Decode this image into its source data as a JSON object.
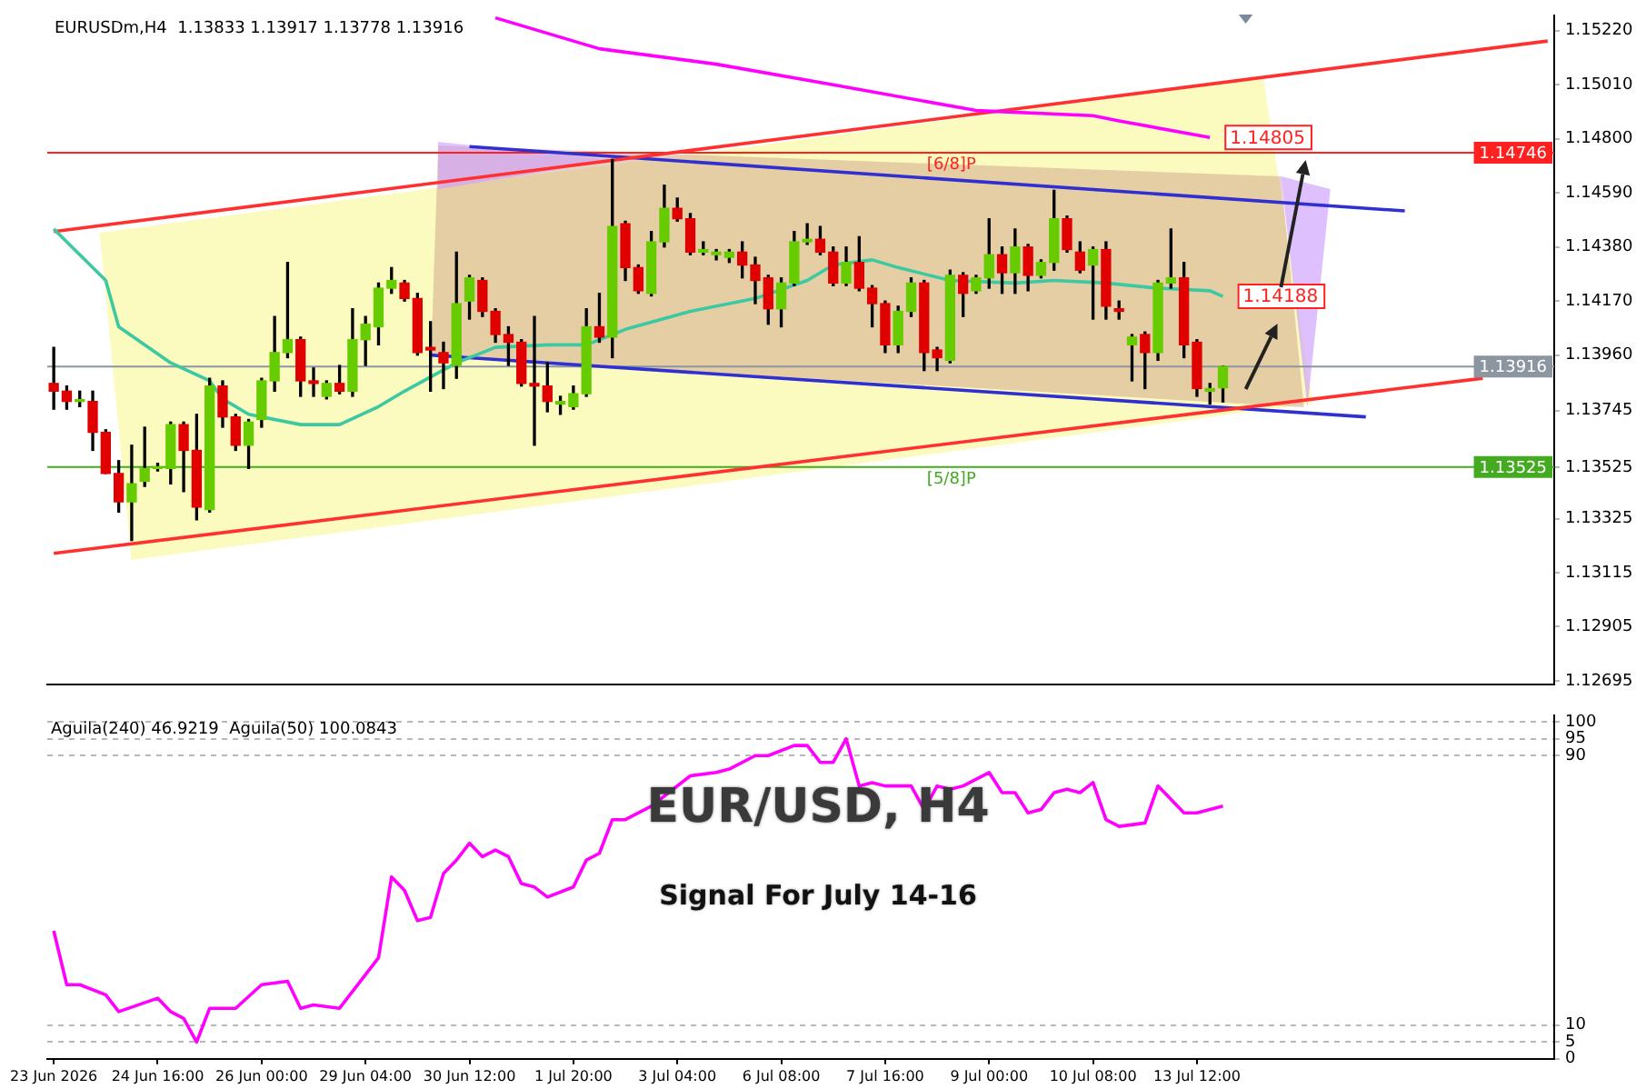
{
  "chart_data": [
    {
      "type": "candlestick",
      "title": "EURUSDm,H4  1.13833 1.13917 1.13778 1.13916",
      "categories": [
        null,
        null,
        null,
        null,
        null,
        null,
        null,
        null,
        null,
        null,
        null,
        null,
        null,
        null,
        null,
        null,
        null,
        null,
        null,
        null,
        null,
        null,
        null,
        null,
        null,
        null,
        null,
        null,
        null,
        null,
        null,
        null,
        null,
        null,
        null,
        null,
        null,
        null,
        null,
        null,
        null,
        null,
        null,
        null,
        null,
        null,
        null,
        null,
        null,
        null,
        null,
        null,
        null,
        null,
        null,
        null,
        null,
        null,
        null,
        null,
        null,
        null,
        null,
        null,
        null,
        null,
        null,
        null,
        null,
        null,
        null,
        null,
        null,
        null,
        null,
        null,
        null,
        null,
        null,
        null,
        null,
        null,
        null,
        null,
        null,
        null,
        null,
        null,
        null,
        null,
        null,
        null,
        null,
        null,
        null,
        null,
        null,
        null,
        null,
        null,
        null,
        null,
        null,
        null,
        null,
        null,
        null,
        null,
        null,
        null,
        null,
        null,
        null,
        null,
        null,
        null
      ],
      "ohlc": [
        [
          1.1385,
          1.1399,
          1.1375,
          1.1382
        ],
        [
          1.1382,
          1.1384,
          1.1375,
          1.1378
        ],
        [
          1.1378,
          1.1382,
          1.1376,
          1.1378
        ],
        [
          1.1378,
          1.1382,
          1.1359,
          1.1366
        ],
        [
          1.1366,
          1.1367,
          1.135,
          1.135
        ],
        [
          1.135,
          1.1355,
          1.1335,
          1.1339
        ],
        [
          1.1339,
          1.1361,
          1.1324,
          1.1346
        ],
        [
          1.1347,
          1.1368,
          1.1345,
          1.1352
        ],
        [
          1.1352,
          1.1354,
          1.1351,
          1.1352
        ],
        [
          1.1352,
          1.137,
          1.1346,
          1.1369
        ],
        [
          1.1369,
          1.137,
          1.1343,
          1.1359
        ],
        [
          1.1359,
          1.1373,
          1.1332,
          1.1337
        ],
        [
          1.1336,
          1.1387,
          1.1335,
          1.1384
        ],
        [
          1.1384,
          1.1386,
          1.1368,
          1.1372
        ],
        [
          1.1372,
          1.1373,
          1.1359,
          1.1361
        ],
        [
          1.1361,
          1.1371,
          1.1352,
          1.137
        ],
        [
          1.1371,
          1.1387,
          1.1368,
          1.1386
        ],
        [
          1.1386,
          1.1411,
          1.1382,
          1.1397
        ],
        [
          1.1397,
          1.1432,
          1.1395,
          1.1402
        ],
        [
          1.1402,
          1.1403,
          1.138,
          1.1386
        ],
        [
          1.1386,
          1.1391,
          1.138,
          1.1385
        ],
        [
          1.138,
          1.1386,
          1.1379,
          1.1385
        ],
        [
          1.1385,
          1.1392,
          1.1381,
          1.1382
        ],
        [
          1.1382,
          1.1414,
          1.138,
          1.1402
        ],
        [
          1.1402,
          1.1411,
          1.1392,
          1.1408
        ],
        [
          1.1407,
          1.1424,
          1.14,
          1.1422
        ],
        [
          1.1422,
          1.143,
          1.142,
          1.1425
        ],
        [
          1.1424,
          1.1425,
          1.1417,
          1.1418
        ],
        [
          1.1418,
          1.142,
          1.1396,
          1.1397
        ],
        [
          1.1399,
          1.1409,
          1.1382,
          1.1398
        ],
        [
          1.1397,
          1.1401,
          1.1383,
          1.1393
        ],
        [
          1.1392,
          1.1436,
          1.1387,
          1.1416
        ],
        [
          1.1417,
          1.1427,
          1.141,
          1.1426
        ],
        [
          1.1425,
          1.1426,
          1.1411,
          1.1413
        ],
        [
          1.1413,
          1.1414,
          1.1401,
          1.1404
        ],
        [
          1.1404,
          1.1407,
          1.1392,
          1.1401
        ],
        [
          1.1401,
          1.1402,
          1.1384,
          1.1385
        ],
        [
          1.1385,
          1.1411,
          1.1361,
          1.1384
        ],
        [
          1.1384,
          1.1393,
          1.1374,
          1.1378
        ],
        [
          1.1377,
          1.138,
          1.1373,
          1.1378
        ],
        [
          1.1376,
          1.1384,
          1.1375,
          1.1381
        ],
        [
          1.1381,
          1.1414,
          1.138,
          1.1407
        ],
        [
          1.1407,
          1.142,
          1.1401,
          1.1403
        ],
        [
          1.1403,
          1.1472,
          1.1395,
          1.1446
        ],
        [
          1.1447,
          1.1448,
          1.1425,
          1.143
        ],
        [
          1.143,
          1.1431,
          1.142,
          1.1421
        ],
        [
          1.142,
          1.1444,
          1.1419,
          1.144
        ],
        [
          1.144,
          1.1462,
          1.1438,
          1.1453
        ],
        [
          1.1453,
          1.1457,
          1.1448,
          1.1449
        ],
        [
          1.1449,
          1.1451,
          1.1435,
          1.1436
        ],
        [
          1.1436,
          1.144,
          1.1435,
          1.1437
        ],
        [
          1.1435,
          1.1437,
          1.1433,
          1.1436
        ],
        [
          1.1434,
          1.1437,
          1.1432,
          1.1436
        ],
        [
          1.1436,
          1.144,
          1.1426,
          1.1431
        ],
        [
          1.1431,
          1.1434,
          1.1416,
          1.1425
        ],
        [
          1.1426,
          1.1427,
          1.1408,
          1.1414
        ],
        [
          1.1414,
          1.1426,
          1.1407,
          1.1424
        ],
        [
          1.1424,
          1.1444,
          1.1423,
          1.144
        ],
        [
          1.144,
          1.1447,
          1.1439,
          1.1441
        ],
        [
          1.1441,
          1.1446,
          1.1435,
          1.1436
        ],
        [
          1.1436,
          1.1438,
          1.1423,
          1.1424
        ],
        [
          1.1424,
          1.1438,
          1.1423,
          1.1432
        ],
        [
          1.1432,
          1.1442,
          1.1421,
          1.1422
        ],
        [
          1.1422,
          1.1423,
          1.1407,
          1.1416
        ],
        [
          1.1416,
          1.1417,
          1.1397,
          1.14
        ],
        [
          1.14,
          1.1415,
          1.1397,
          1.1413
        ],
        [
          1.1413,
          1.1426,
          1.1411,
          1.1424
        ],
        [
          1.1424,
          1.1425,
          1.139,
          1.1397
        ],
        [
          1.1398,
          1.1399,
          1.139,
          1.1395
        ],
        [
          1.1394,
          1.1429,
          1.1393,
          1.1427
        ],
        [
          1.1427,
          1.1428,
          1.1411,
          1.142
        ],
        [
          1.1421,
          1.1427,
          1.142,
          1.1426
        ],
        [
          1.1426,
          1.1449,
          1.1422,
          1.1435
        ],
        [
          1.1435,
          1.1438,
          1.142,
          1.1428
        ],
        [
          1.1428,
          1.1445,
          1.142,
          1.1438
        ],
        [
          1.1438,
          1.1439,
          1.1421,
          1.1427
        ],
        [
          1.1427,
          1.1433,
          1.1426,
          1.1432
        ],
        [
          1.1432,
          1.146,
          1.1429,
          1.1449
        ],
        [
          1.1449,
          1.145,
          1.1436,
          1.1437
        ],
        [
          1.1436,
          1.144,
          1.1428,
          1.1429
        ],
        [
          1.1431,
          1.1438,
          1.141,
          1.1437
        ],
        [
          1.1437,
          1.144,
          1.141,
          1.1415
        ],
        [
          1.1414,
          1.1417,
          1.141,
          1.1413
        ],
        [
          1.14,
          1.1404,
          1.1386,
          1.1403
        ],
        [
          1.1404,
          1.1405,
          1.1383,
          1.1397
        ],
        [
          1.1397,
          1.1425,
          1.1394,
          1.1424
        ],
        [
          1.1424,
          1.1445,
          1.1422,
          1.1426
        ],
        [
          1.1426,
          1.1432,
          1.1395,
          1.14
        ],
        [
          1.1401,
          1.1402,
          1.138,
          1.1383
        ],
        [
          1.1382,
          1.1385,
          1.1377,
          1.1383
        ],
        [
          1.13833,
          1.13917,
          1.13778,
          1.13916
        ],
        null,
        null,
        null,
        null,
        null,
        null,
        null,
        null,
        null,
        null,
        null,
        null,
        null,
        null,
        null,
        null,
        null,
        null,
        null,
        null,
        null,
        null,
        null,
        null,
        null
      ],
      "series": [
        {
          "type": "line",
          "color": "#3cc8a0",
          "values": [
            1.1445,
            null,
            null,
            null,
            1.1425,
            1.1407,
            null,
            null,
            null,
            1.1393,
            null,
            null,
            1.1386,
            1.1379,
            null,
            1.1373,
            null,
            null,
            null,
            1.1369,
            null,
            null,
            1.1369,
            null,
            null,
            1.1376,
            null,
            1.1382,
            null,
            null,
            null,
            1.1393,
            null,
            null,
            1.1399,
            null,
            null,
            null,
            1.14,
            null,
            null,
            1.14,
            null,
            null,
            1.1406,
            null,
            null,
            null,
            null,
            1.1413,
            null,
            null,
            null,
            null,
            1.1418,
            null,
            null,
            null,
            1.1425,
            null,
            1.1431,
            null,
            null,
            1.1433,
            null,
            1.143,
            null,
            null,
            null,
            1.1425,
            null,
            null,
            null,
            null,
            1.1424,
            null,
            null,
            1.1425,
            null,
            null,
            null,
            1.1424,
            null,
            null,
            null,
            1.1422,
            null,
            null,
            null,
            1.1421,
            1.14188,
            null,
            null,
            null,
            null,
            null,
            null,
            null,
            null,
            null,
            null,
            null,
            null,
            null,
            null,
            null,
            null,
            null,
            null,
            null,
            null,
            null,
            null,
            null,
            null,
            null
          ],
          "value_labels": [
            null,
            null,
            null,
            null,
            null,
            null,
            null,
            null,
            null,
            null,
            null,
            null,
            null,
            null,
            null,
            null,
            null,
            null,
            null,
            null,
            null,
            null,
            null,
            null,
            null,
            null,
            null,
            null,
            null,
            null,
            null,
            null,
            null,
            null,
            null,
            null,
            null,
            null,
            null,
            null,
            null,
            null,
            null,
            null,
            null,
            null,
            null,
            null,
            null,
            null,
            null,
            null,
            null,
            null,
            null,
            null,
            null,
            null,
            null,
            null,
            null,
            null,
            null,
            null,
            null,
            null,
            null,
            null,
            null,
            null,
            null,
            null,
            null,
            null,
            null,
            null,
            null,
            null,
            null,
            null,
            null,
            null,
            null,
            null,
            null,
            null,
            null,
            null,
            null,
            null,
            "1.14188",
            null,
            null,
            null,
            null,
            null,
            null,
            null,
            null,
            null,
            null,
            null,
            null,
            null,
            null,
            null,
            null,
            null,
            null,
            null,
            null,
            null,
            null,
            null,
            null,
            null
          ]
        },
        {
          "type": "line",
          "color": "#ff00ff",
          "values": [
            null,
            null,
            null,
            null,
            null,
            null,
            null,
            null,
            null,
            null,
            null,
            null,
            null,
            null,
            null,
            null,
            null,
            null,
            null,
            null,
            null,
            null,
            null,
            null,
            null,
            null,
            null,
            null,
            null,
            null,
            null,
            null,
            null,
            null,
            1.1527,
            null,
            null,
            null,
            null,
            null,
            null,
            null,
            1.1515,
            null,
            null,
            null,
            null,
            null,
            null,
            null,
            null,
            1.1509,
            null,
            null,
            null,
            null,
            null,
            null,
            null,
            null,
            1.1501,
            null,
            null,
            null,
            null,
            null,
            null,
            null,
            null,
            null,
            null,
            1.1491,
            null,
            null,
            null,
            null,
            null,
            null,
            null,
            null,
            1.1489,
            null,
            1.1487,
            null,
            null,
            null,
            null,
            null,
            null,
            1.14805,
            null,
            null,
            null,
            null,
            null,
            null,
            null,
            null,
            null,
            null,
            null,
            null,
            null,
            null,
            null,
            null,
            null,
            null,
            null,
            null,
            null,
            null,
            null,
            null,
            null,
            null
          ],
          "value_labels": [
            null,
            null,
            null,
            null,
            null,
            null,
            null,
            null,
            null,
            null,
            null,
            null,
            null,
            null,
            null,
            null,
            null,
            null,
            null,
            null,
            null,
            null,
            null,
            null,
            null,
            null,
            null,
            null,
            null,
            null,
            null,
            null,
            null,
            null,
            null,
            null,
            null,
            null,
            null,
            null,
            null,
            null,
            null,
            null,
            null,
            null,
            null,
            null,
            null,
            null,
            null,
            null,
            null,
            null,
            null,
            null,
            null,
            null,
            null,
            null,
            null,
            null,
            null,
            null,
            null,
            null,
            null,
            null,
            null,
            null,
            null,
            null,
            null,
            null,
            null,
            null,
            null,
            null,
            null,
            null,
            null,
            null,
            null,
            null,
            null,
            null,
            null,
            null,
            null,
            "1.14805",
            null,
            null,
            null,
            null,
            null,
            null,
            null,
            null,
            null,
            null,
            null,
            null,
            null,
            null,
            null,
            null,
            null,
            null,
            null,
            null,
            null,
            null,
            null,
            null,
            null,
            null
          ]
        },
        {
          "type": "line",
          "color": "#ff3030",
          "values": [
            1.1444,
            null,
            null,
            null,
            null,
            null,
            null,
            null,
            null,
            null,
            null,
            null,
            null,
            null,
            null,
            null,
            null,
            null,
            null,
            null,
            null,
            null,
            null,
            null,
            null,
            null,
            null,
            null,
            null,
            null,
            null,
            null,
            null,
            null,
            null,
            null,
            null,
            null,
            null,
            null,
            null,
            null,
            null,
            null,
            null,
            null,
            null,
            null,
            null,
            null,
            null,
            null,
            null,
            null,
            null,
            null,
            null,
            null,
            null,
            null,
            null,
            null,
            null,
            null,
            null,
            null,
            null,
            null,
            null,
            null,
            null,
            null,
            null,
            null,
            null,
            null,
            null,
            null,
            null,
            null,
            null,
            null,
            null,
            null,
            null,
            null,
            null,
            null,
            null,
            null,
            null,
            null,
            null,
            null,
            null,
            null,
            null,
            null,
            null,
            null,
            null,
            null,
            null,
            null,
            null,
            null,
            null,
            null,
            null,
            null,
            null,
            null,
            null,
            null,
            null,
            1.1518
          ]
        },
        {
          "type": "line",
          "color": "#ff3030",
          "values": [
            1.1319,
            null,
            null,
            null,
            null,
            null,
            null,
            null,
            null,
            null,
            null,
            null,
            null,
            null,
            null,
            null,
            null,
            null,
            null,
            null,
            null,
            null,
            null,
            null,
            null,
            null,
            null,
            null,
            null,
            null,
            null,
            null,
            null,
            null,
            null,
            null,
            null,
            null,
            null,
            null,
            null,
            null,
            null,
            null,
            null,
            null,
            null,
            null,
            null,
            null,
            null,
            null,
            null,
            null,
            null,
            null,
            null,
            null,
            null,
            null,
            null,
            null,
            null,
            null,
            null,
            null,
            null,
            null,
            null,
            null,
            null,
            null,
            null,
            null,
            null,
            null,
            null,
            null,
            null,
            null,
            null,
            null,
            null,
            null,
            null,
            null,
            null,
            null,
            null,
            null,
            null,
            null,
            null,
            null,
            null,
            null,
            null,
            null,
            null,
            null,
            null,
            null,
            null,
            null,
            null,
            null,
            null,
            null,
            null,
            null,
            1.1387,
            null,
            null,
            null,
            null,
            null
          ]
        },
        {
          "type": "line",
          "color": "#3030d0",
          "values": [
            null,
            null,
            null,
            null,
            null,
            null,
            null,
            null,
            null,
            null,
            null,
            null,
            null,
            null,
            null,
            null,
            null,
            null,
            null,
            null,
            null,
            null,
            null,
            null,
            null,
            null,
            null,
            null,
            null,
            null,
            null,
            null,
            1.1477,
            null,
            null,
            null,
            null,
            null,
            null,
            null,
            null,
            null,
            null,
            null,
            null,
            null,
            null,
            null,
            null,
            null,
            null,
            null,
            null,
            null,
            null,
            null,
            null,
            null,
            null,
            null,
            null,
            null,
            null,
            null,
            null,
            null,
            null,
            null,
            null,
            null,
            null,
            null,
            null,
            null,
            null,
            null,
            null,
            null,
            null,
            null,
            null,
            null,
            null,
            null,
            null,
            null,
            null,
            null,
            null,
            null,
            null,
            null,
            null,
            null,
            null,
            null,
            null,
            null,
            null,
            null,
            null,
            null,
            null,
            null,
            1.1452,
            null,
            null,
            null,
            null,
            null,
            null,
            null,
            null,
            null,
            null,
            null
          ]
        },
        {
          "type": "line",
          "color": "#3030d0",
          "values": [
            null,
            null,
            null,
            null,
            null,
            null,
            null,
            null,
            null,
            null,
            null,
            null,
            null,
            null,
            null,
            null,
            null,
            null,
            null,
            null,
            null,
            null,
            null,
            null,
            null,
            null,
            null,
            null,
            null,
            1.1396,
            null,
            null,
            null,
            null,
            null,
            null,
            null,
            null,
            null,
            null,
            null,
            null,
            null,
            null,
            null,
            null,
            null,
            null,
            null,
            null,
            null,
            null,
            null,
            null,
            null,
            null,
            null,
            null,
            null,
            null,
            null,
            null,
            null,
            null,
            null,
            null,
            null,
            null,
            null,
            null,
            null,
            null,
            null,
            null,
            null,
            null,
            null,
            null,
            null,
            null,
            null,
            null,
            null,
            null,
            null,
            null,
            null,
            null,
            null,
            null,
            null,
            null,
            null,
            null,
            null,
            null,
            null,
            null,
            null,
            null,
            null,
            1.1372,
            null,
            null,
            null,
            null,
            null,
            null,
            null,
            null,
            null,
            null,
            null,
            null,
            null,
            null
          ]
        }
      ],
      "ref_lines": [
        {
          "axis": "y",
          "value": 1.14746,
          "label": "1.14746",
          "color": "#ff2020"
        },
        {
          "axis": "y",
          "value": 1.13525,
          "label": "1.13525",
          "color": "#44aa22"
        },
        {
          "axis": "y",
          "value": 1.13916,
          "label": "1.13916",
          "color": "#8c96a0"
        }
      ],
      "annotations": [
        {
          "text": "[6/8]P",
          "y": 1.14746
        },
        {
          "text": "[5/8]P",
          "y": 1.13525
        }
      ],
      "ylim": [
        1.1268,
        1.1528
      ],
      "yticks": [
        {
          "value": 1.1522,
          "label": "1.15220"
        },
        {
          "value": 1.1501,
          "label": "1.15010"
        },
        {
          "value": 1.148,
          "label": "1.14800"
        },
        {
          "value": 1.1459,
          "label": "1.14590"
        },
        {
          "value": 1.1438,
          "label": "1.14380"
        },
        {
          "value": 1.1417,
          "label": "1.14170"
        },
        {
          "value": 1.1396,
          "label": "1.13960"
        },
        {
          "value": 1.13745,
          "label": "1.13745"
        },
        {
          "value": 1.13525,
          "label": "1.13525"
        },
        {
          "value": 1.13325,
          "label": "1.13325"
        },
        {
          "value": 1.13115,
          "label": "1.13115"
        },
        {
          "value": 1.12905,
          "label": "1.12905"
        },
        {
          "value": 1.12695,
          "label": "1.12695"
        }
      ],
      "tick_labels": "y"
    },
    {
      "type": "line",
      "title": "EUR/USD, H4",
      "subtitle": "Signal For July 14-16",
      "annotations": [
        "Aguila(240) 46.9219  Aguila(50) 100.0843"
      ],
      "categories": [
        "23 Jun 2026",
        null,
        null,
        null,
        null,
        null,
        null,
        null,
        "24 Jun 16:00",
        null,
        null,
        null,
        null,
        null,
        null,
        null,
        "26 Jun 00:00",
        null,
        null,
        null,
        null,
        null,
        null,
        null,
        "29 Jun 04:00",
        null,
        null,
        null,
        null,
        null,
        null,
        null,
        "30 Jun 12:00",
        null,
        null,
        null,
        null,
        null,
        null,
        null,
        "1 Jul 20:00",
        null,
        null,
        null,
        null,
        null,
        null,
        null,
        "3 Jul 04:00",
        null,
        null,
        null,
        null,
        null,
        null,
        null,
        "6 Jul 08:00",
        null,
        null,
        null,
        null,
        null,
        null,
        null,
        "7 Jul 16:00",
        null,
        null,
        null,
        null,
        null,
        null,
        null,
        "9 Jul 00:00",
        null,
        null,
        null,
        null,
        null,
        null,
        null,
        "10 Jul 08:00",
        null,
        null,
        null,
        null,
        null,
        null,
        null,
        "13 Jul 12:00",
        null,
        null,
        null,
        null,
        null,
        null,
        null,
        null,
        null,
        null,
        null,
        null,
        null,
        null,
        null,
        null,
        null,
        null,
        null,
        null,
        null,
        null,
        null,
        null,
        null,
        null,
        null
      ],
      "color": "#ff00ff",
      "values": [
        38,
        22,
        22,
        null,
        19,
        14,
        null,
        null,
        18,
        14,
        12,
        5,
        15,
        null,
        15,
        null,
        22,
        null,
        23,
        15,
        16,
        null,
        15,
        null,
        25,
        30,
        54,
        50,
        41,
        42,
        55,
        59,
        64,
        60,
        62,
        60,
        52,
        51,
        48,
        null,
        51,
        59,
        61,
        71,
        71,
        null,
        75,
        null,
        null,
        84,
        null,
        85,
        86,
        null,
        90,
        90,
        null,
        93,
        93,
        88,
        88,
        95,
        81,
        82,
        81,
        null,
        81,
        74,
        81,
        80,
        81,
        null,
        85,
        79,
        79,
        73,
        74,
        79,
        80,
        79,
        82,
        71,
        69,
        null,
        70,
        81,
        null,
        73,
        73,
        null,
        75,
        null,
        null,
        null,
        null,
        null,
        null,
        null,
        null,
        null,
        null,
        null,
        null,
        null,
        null,
        null,
        null,
        null,
        null,
        null,
        null,
        null,
        null,
        null,
        null,
        null
      ],
      "ylim": [
        0,
        102
      ],
      "yticks": [
        100,
        95,
        90,
        10,
        5,
        0
      ],
      "grid": "y"
    }
  ]
}
